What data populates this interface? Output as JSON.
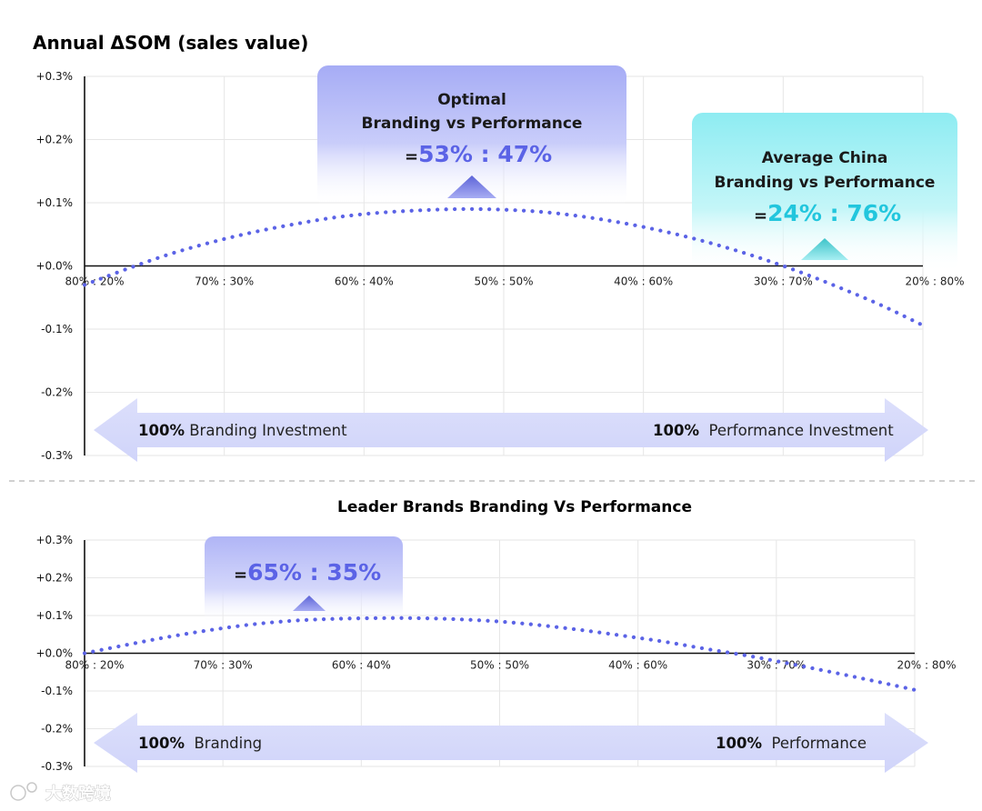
{
  "chart_data": [
    {
      "type": "line",
      "title": "Annual ΔSOM (sales value)",
      "x_tick_labels": [
        "80% : 20%",
        "70% : 30%",
        "60% : 40%",
        "50% : 50%",
        "40% : 60%",
        "30% : 70%",
        "20% : 80%"
      ],
      "x_branding_share": [
        80,
        70,
        60,
        50,
        40,
        30,
        20
      ],
      "y_tick_labels": [
        "+0.3%",
        "+0.2%",
        "+0.1%",
        "+0.0%",
        "-0.1%",
        "-0.2%",
        "-0.3%"
      ],
      "ylim": [
        -0.3,
        0.3
      ],
      "grid": true,
      "series": [
        {
          "name": "Annual ΔSOM",
          "style": "dotted",
          "color": "#5b63e6",
          "x": [
            80,
            77,
            74,
            71,
            68,
            65,
            62,
            59,
            56,
            53,
            50,
            47,
            44,
            41,
            38,
            35,
            32,
            29,
            26,
            23,
            20
          ],
          "values": [
            -0.03,
            -0.005,
            0.018,
            0.037,
            0.053,
            0.066,
            0.077,
            0.084,
            0.088,
            0.09,
            0.089,
            0.085,
            0.077,
            0.066,
            0.052,
            0.035,
            0.015,
            -0.008,
            -0.034,
            -0.062,
            -0.094
          ]
        }
      ],
      "annotations": [
        {
          "lines": [
            "Optimal",
            "Branding vs Performance"
          ],
          "eq": "=",
          "ratio": "53% : 47%",
          "color": "#5b63e6"
        },
        {
          "lines": [
            "Average China",
            "Branding vs Performance"
          ],
          "eq": "=",
          "ratio": "24% : 76%",
          "color": "#22c6dd"
        }
      ],
      "arrow": {
        "left_bold": "100%",
        "left_text": " Branding Investment",
        "right_bold": "100%",
        "right_text": "  Performance Investment"
      }
    },
    {
      "type": "line",
      "title": "Leader Brands Branding Vs Performance",
      "x_tick_labels": [
        "80% : 20%",
        "70% : 30%",
        "60% : 40%",
        "50% : 50%",
        "40% : 60%",
        "30% : 70%",
        "20% : 80%"
      ],
      "x_branding_share": [
        80,
        70,
        60,
        50,
        40,
        30,
        20
      ],
      "y_tick_labels": [
        "+0.3%",
        "+0.2%",
        "+0.1%",
        "+0.0%",
        "-0.1%",
        "-0.2%",
        "-0.3%"
      ],
      "ylim": [
        -0.3,
        0.3
      ],
      "grid": true,
      "series": [
        {
          "name": "Leader Brands ΔSOM",
          "style": "dotted",
          "color": "#5b63e6",
          "x": [
            80,
            77,
            74,
            71,
            68,
            65,
            62,
            59,
            56,
            53,
            50,
            47,
            44,
            41,
            38,
            35,
            32,
            29,
            26,
            23,
            20
          ],
          "values": [
            0.0,
            0.022,
            0.043,
            0.061,
            0.076,
            0.086,
            0.091,
            0.093,
            0.093,
            0.09,
            0.084,
            0.074,
            0.061,
            0.046,
            0.03,
            0.011,
            -0.007,
            -0.028,
            -0.05,
            -0.073,
            -0.097
          ]
        }
      ],
      "annotations": [
        {
          "lines": [],
          "eq": "=",
          "ratio": "65% : 35%",
          "color": "#5b63e6"
        }
      ],
      "arrow": {
        "left_bold": "100%",
        "left_text": "  Branding",
        "right_bold": "100%",
        "right_text": "  Performance"
      }
    }
  ],
  "watermark": "大数跨境"
}
